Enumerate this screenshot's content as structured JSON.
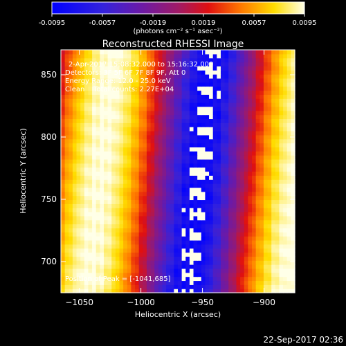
{
  "colorbar": {
    "ticks": [
      "-0.0095",
      "-0.0057",
      "-0.0019",
      "0.0019",
      "0.0057",
      "0.0095"
    ],
    "unit_label": "(photons cm⁻² s⁻¹ asec⁻²)"
  },
  "chart_data": {
    "type": "heatmap",
    "title": "Reconstructed RHESSI Image",
    "xlabel": "Heliocentric X (arcsec)",
    "ylabel": "Heliocentric Y (arcsec)",
    "xlim": [
      -1065,
      -875
    ],
    "ylim": [
      675,
      870
    ],
    "x_ticks": [
      -1050,
      -1000,
      -950,
      -900
    ],
    "y_ticks": [
      700,
      750,
      800,
      850
    ],
    "x_tick_labels": [
      "−1050",
      "−1000",
      "−950",
      "−900"
    ],
    "y_tick_labels": [
      "700",
      "750",
      "800",
      "850"
    ],
    "color_range": [
      -0.0095,
      0.0095
    ],
    "colormap": "blue-purple-red-yellow-white",
    "grid": false,
    "annotations": [
      "2-Apr-2017 15:08:32.000 to 15:16:32.000",
      "Detectors: 3F 5F 6F 7F 8F 9F, Att 0",
      "Energy Range: 12.0 - 25.0 keV",
      "Clean    Total counts: 2.27E+04"
    ],
    "peak_label": "Position of Peak = [-1041,685]",
    "peak_position": [
      -1041,
      685
    ],
    "bands": [
      {
        "type": "min",
        "x_center": -952,
        "tilt": 0.1,
        "value": -0.0095
      },
      {
        "type": "max",
        "x_center": -1033,
        "tilt": 0.1,
        "value": 0.0095
      },
      {
        "type": "max",
        "x_center": -892,
        "tilt": 0.1,
        "value": 0.0095
      }
    ]
  },
  "timestamp": "22-Sep-2017 02:36"
}
